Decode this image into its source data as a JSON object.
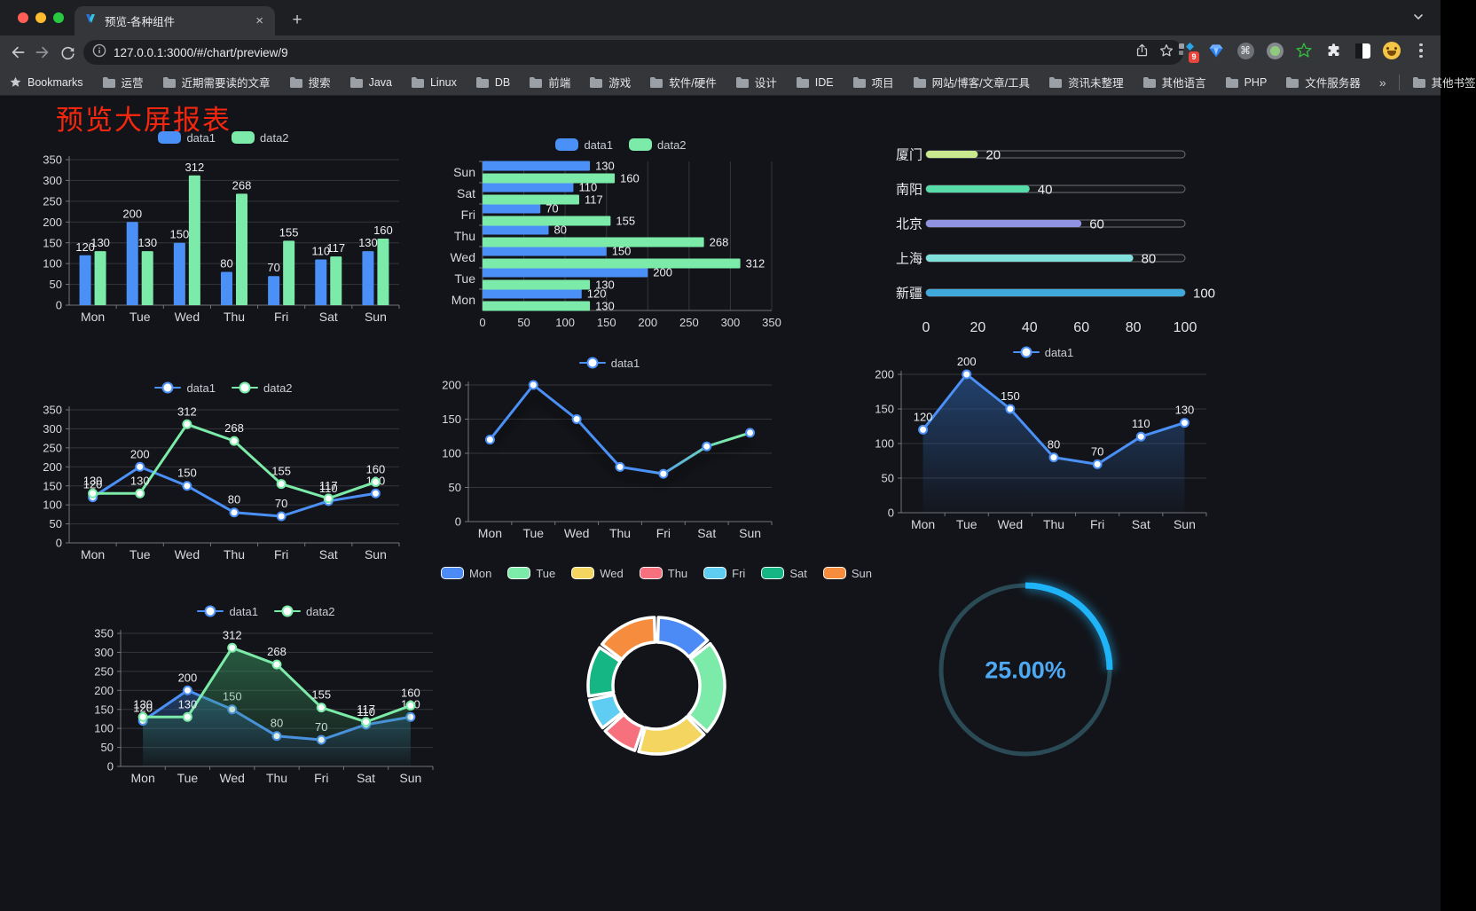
{
  "browser": {
    "tab_title": "预览-各种组件",
    "tab_close_label": "×",
    "new_tab_label": "+",
    "url": "127.0.0.1:3000/#/chart/preview/9",
    "extension_badge": "9",
    "command_glyph": "⌘",
    "bookmarks": {
      "label": "Bookmarks",
      "items": [
        "运营",
        "近期需要读的文章",
        "搜索",
        "Java",
        "Linux",
        "DB",
        "前端",
        "游戏",
        "软件/硬件",
        "设计",
        "IDE",
        "项目",
        "网站/博客/文章/工具",
        "资讯未整理",
        "其他语言",
        "PHP",
        "文件服务器"
      ],
      "overflow": "»",
      "other": "其他书签"
    }
  },
  "page": {
    "title": "预览大屏报表"
  },
  "colors": {
    "series_blue": "#4B90F6",
    "series_green": "#7CEBA9",
    "title_red": "#F5270E",
    "grid": "#34363B",
    "axis": "#71757A",
    "tick_text": "#D6D9DD",
    "value_text": "#ECEDEF"
  },
  "chart_data": [
    {
      "id": "bar-vertical",
      "type": "bar",
      "legend_marker": "bar",
      "categories": [
        "Mon",
        "Tue",
        "Wed",
        "Thu",
        "Fri",
        "Sat",
        "Sun"
      ],
      "series": [
        {
          "name": "data1",
          "color": "#4B90F6",
          "values": [
            120,
            200,
            150,
            80,
            70,
            110,
            130
          ]
        },
        {
          "name": "data2",
          "color": "#7CEBA9",
          "values": [
            130,
            130,
            312,
            268,
            155,
            117,
            160
          ]
        }
      ],
      "ylim": [
        0,
        350
      ],
      "ytick_step": 50,
      "labels": true,
      "grid_on": true,
      "legend_position": "top"
    },
    {
      "id": "bar-horizontal",
      "type": "hbar",
      "legend_marker": "bar",
      "categories": [
        "Mon",
        "Tue",
        "Wed",
        "Thu",
        "Fri",
        "Sat",
        "Sun"
      ],
      "series": [
        {
          "name": "data1",
          "color": "#4B90F6",
          "values": [
            120,
            200,
            150,
            80,
            70,
            110,
            130
          ]
        },
        {
          "name": "data2",
          "color": "#7CEBA9",
          "values": [
            130,
            130,
            312,
            268,
            155,
            117,
            160
          ]
        }
      ],
      "xlim": [
        0,
        350
      ],
      "xtick_step": 50,
      "labels": true,
      "grid_on": true,
      "legend_position": "top"
    },
    {
      "id": "progress-bars",
      "type": "progress",
      "max": 100,
      "xticks": [
        0,
        20,
        40,
        60,
        80,
        100
      ],
      "rows": [
        {
          "label": "厦门",
          "value": 20,
          "color": "#C8E98E"
        },
        {
          "label": "南阳",
          "value": 40,
          "color": "#57DBA9"
        },
        {
          "label": "北京",
          "value": 60,
          "color": "#8F93E2"
        },
        {
          "label": "上海",
          "value": 80,
          "color": "#80E0DC"
        },
        {
          "label": "新疆",
          "value": 100,
          "color": "#3FA9DC"
        }
      ]
    },
    {
      "id": "line-two",
      "type": "line",
      "legend_marker": "line",
      "categories": [
        "Mon",
        "Tue",
        "Wed",
        "Thu",
        "Fri",
        "Sat",
        "Sun"
      ],
      "series": [
        {
          "name": "data1",
          "color": "#4B90F6",
          "values": [
            120,
            200,
            150,
            80,
            70,
            110,
            130
          ]
        },
        {
          "name": "data2",
          "color": "#7CEBA9",
          "values": [
            130,
            130,
            312,
            268,
            155,
            117,
            160
          ]
        }
      ],
      "ylim": [
        0,
        350
      ],
      "ytick_step": 50,
      "labels": true,
      "legend_position": "top"
    },
    {
      "id": "line-gradient",
      "type": "line",
      "legend_marker": "line",
      "shadow": true,
      "categories": [
        "Mon",
        "Tue",
        "Wed",
        "Thu",
        "Fri",
        "Sat",
        "Sun"
      ],
      "series": [
        {
          "name": "data1",
          "color": "#4B90F6",
          "gradient": [
            "#4B90F6",
            "#7CEBA9"
          ],
          "values": [
            120,
            200,
            150,
            80,
            70,
            110,
            130
          ]
        }
      ],
      "ylim": [
        0,
        200
      ],
      "ytick_step": 50,
      "labels": false,
      "legend_position": "top"
    },
    {
      "id": "area-single",
      "type": "line",
      "legend_marker": "line",
      "categories": [
        "Mon",
        "Tue",
        "Wed",
        "Thu",
        "Fri",
        "Sat",
        "Sun"
      ],
      "series": [
        {
          "name": "data1",
          "color": "#4B90F6",
          "values": [
            120,
            200,
            150,
            80,
            70,
            110,
            130
          ],
          "area_from": "rgba(44,95,164,0.60)",
          "area_to": "rgba(44,95,164,0.03)"
        }
      ],
      "ylim": [
        0,
        200
      ],
      "ytick_step": 50,
      "labels": true,
      "legend_position": "top"
    },
    {
      "id": "line-two-area",
      "type": "line",
      "legend_marker": "line",
      "categories": [
        "Mon",
        "Tue",
        "Wed",
        "Thu",
        "Fri",
        "Sat",
        "Sun"
      ],
      "series": [
        {
          "name": "data1",
          "color": "#4B90F6",
          "values": [
            120,
            200,
            150,
            80,
            70,
            110,
            130
          ],
          "area_from": "rgba(44,95,164,0.55)",
          "area_to": "rgba(44,95,164,0.03)"
        },
        {
          "name": "data2",
          "color": "#7CEBA9",
          "values": [
            130,
            130,
            312,
            268,
            155,
            117,
            160
          ],
          "area_from": "rgba(56,150,96,0.55)",
          "area_to": "rgba(56,150,96,0.03)"
        }
      ],
      "ylim": [
        0,
        350
      ],
      "ytick_step": 50,
      "labels": true,
      "legend_position": "top"
    },
    {
      "id": "donut",
      "type": "pie",
      "legend_marker": "pie",
      "legend_position": "top",
      "items": [
        {
          "label": "Mon",
          "value": 120,
          "color": "#4C8AF5"
        },
        {
          "label": "Tue",
          "value": 200,
          "color": "#7CEBA9"
        },
        {
          "label": "Wed",
          "value": 150,
          "color": "#F3D55F"
        },
        {
          "label": "Thu",
          "value": 80,
          "color": "#F7707D"
        },
        {
          "label": "Fri",
          "value": 70,
          "color": "#5FCDF2"
        },
        {
          "label": "Sat",
          "value": 110,
          "color": "#16B584"
        },
        {
          "label": "Sun",
          "value": 130,
          "color": "#F68C3E"
        }
      ]
    },
    {
      "id": "gauge",
      "type": "gauge",
      "value": 25,
      "label": "25.00%",
      "color": "#1FB3F8",
      "track_color": "#2A4A55",
      "text_color": "#4FA8F2"
    }
  ]
}
